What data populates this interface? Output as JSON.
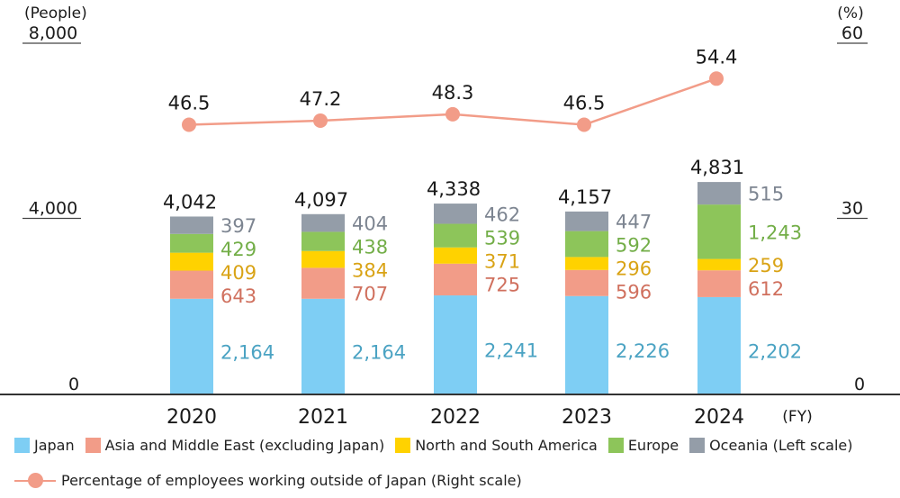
{
  "chart_data": {
    "type": "bar",
    "subtype": "stacked-bar-with-line",
    "categories": [
      "2020",
      "2021",
      "2022",
      "2023",
      "2024"
    ],
    "xlabel": "(FY)",
    "left_axis": {
      "unit_label": "(People)",
      "ylim": [
        0,
        8000
      ],
      "ticks": [
        0,
        4000,
        8000
      ],
      "tick_labels": [
        "0",
        "4,000",
        "8,000"
      ]
    },
    "right_axis": {
      "unit_label": "(%)",
      "ylim": [
        0,
        60
      ],
      "ticks": [
        0,
        30,
        60
      ],
      "tick_labels": [
        "0",
        "30",
        "60"
      ]
    },
    "series": [
      {
        "name": "Japan",
        "color": "#7ECEF4",
        "label_color": "#4BA3C3",
        "values": [
          2164,
          2164,
          2241,
          2226,
          2202
        ],
        "labels": [
          "2,164",
          "2,164",
          "2,241",
          "2,226",
          "2,202"
        ]
      },
      {
        "name": "Asia and Middle East (excluding Japan)",
        "color": "#F29C88",
        "label_color": "#D0705E",
        "values": [
          643,
          707,
          725,
          596,
          612
        ],
        "labels": [
          "643",
          "707",
          "725",
          "596",
          "612"
        ]
      },
      {
        "name": "North and South America",
        "color": "#FFD200",
        "label_color": "#D9A315",
        "values": [
          409,
          384,
          371,
          296,
          259
        ],
        "labels": [
          "409",
          "384",
          "371",
          "296",
          "259"
        ]
      },
      {
        "name": "Europe",
        "color": "#8DC55A",
        "label_color": "#73AE48",
        "values": [
          429,
          438,
          539,
          592,
          1243
        ],
        "labels": [
          "429",
          "438",
          "539",
          "592",
          "1,243"
        ]
      },
      {
        "name": "Oceania (Left scale)",
        "color": "#949DA8",
        "label_color": "#7D8591",
        "values": [
          397,
          404,
          462,
          447,
          515
        ],
        "labels": [
          "397",
          "404",
          "462",
          "447",
          "515"
        ]
      }
    ],
    "totals": {
      "values": [
        4042,
        4097,
        4338,
        4157,
        4831
      ],
      "labels": [
        "4,042",
        "4,097",
        "4,338",
        "4,157",
        "4,831"
      ]
    },
    "line_series": {
      "name": "Percentage of employees working outside of Japan (Right scale)",
      "color": "#F29C88",
      "axis": "right",
      "values": [
        46.5,
        47.2,
        48.3,
        46.5,
        54.4
      ],
      "labels": [
        "46.5",
        "47.2",
        "48.3",
        "46.5",
        "54.4"
      ]
    },
    "legend_position": "bottom",
    "grid": false
  },
  "legend": {
    "items": [
      {
        "label": "Japan",
        "color": "#7ECEF4"
      },
      {
        "label": "Asia and Middle East (excluding Japan)",
        "color": "#F29C88"
      },
      {
        "label": "North and South America",
        "color": "#FFD200"
      },
      {
        "label": "Europe",
        "color": "#8DC55A"
      },
      {
        "label": "Oceania (Left scale)",
        "color": "#949DA8"
      }
    ],
    "line_item": {
      "label": "Percentage of employees working outside of Japan (Right scale)",
      "color": "#F29C88"
    }
  }
}
